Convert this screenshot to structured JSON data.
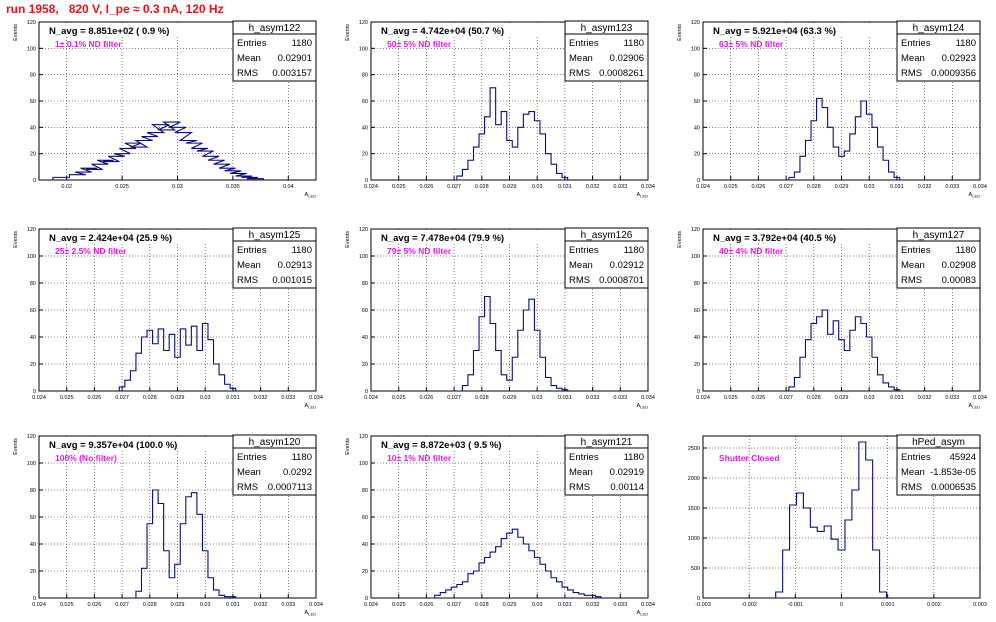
{
  "canvas_title": "run 1958,   820 V, I_pe ≈ 0.3 nA, 120 Hz",
  "colors": {
    "histogram": "#0c0c7a",
    "title": "#e8141b",
    "filter_label": "#e21be2",
    "grid": "#000000"
  },
  "chart_data": [
    {
      "type": "histogram",
      "name": "h_asym122",
      "header": "N_avg = 8.851e+02 ( 0.9 %)",
      "filter_label": "1± 0.1% ND filter",
      "stats": {
        "Entries": "1180",
        "Mean": "0.02901",
        "RMS": "0.003157"
      },
      "ylabel": "Events",
      "xlabel": "A_LED",
      "xlim": [
        0.0175,
        0.0425
      ],
      "ylim": [
        0,
        120
      ],
      "xticks": [
        0.02,
        0.025,
        0.03,
        0.035,
        0.04
      ],
      "xticklabels": [
        "0.02",
        "0.025",
        "0.03",
        "0.035",
        "0.04"
      ],
      "yticks": [
        0,
        20,
        40,
        60,
        80,
        100,
        120
      ],
      "grid": true,
      "bins": {
        "x": [
          0.0195,
          0.021,
          0.0215,
          0.022,
          0.0225,
          0.023,
          0.0235,
          0.024,
          0.0245,
          0.025,
          0.0255,
          0.026,
          0.0265,
          0.027,
          0.0275,
          0.028,
          0.0285,
          0.029,
          0.0295,
          0.03,
          0.0305,
          0.031,
          0.0315,
          0.032,
          0.0325,
          0.033,
          0.0335,
          0.034,
          0.0345,
          0.035,
          0.0355,
          0.036,
          0.0365,
          0.037
        ],
        "y": [
          2,
          4,
          6,
          9,
          8,
          12,
          15,
          14,
          18,
          20,
          24,
          28,
          25,
          30,
          33,
          36,
          42,
          38,
          44,
          40,
          36,
          30,
          28,
          24,
          22,
          18,
          15,
          12,
          9,
          7,
          5,
          3,
          2,
          1
        ]
      }
    },
    {
      "type": "histogram",
      "name": "h_asym123",
      "header": "N_avg = 4.742e+04 (50.7 %)",
      "filter_label": "50± 5% ND filter",
      "stats": {
        "Entries": "1180",
        "Mean": "0.02906",
        "RMS": "0.0008261"
      },
      "ylabel": "Events",
      "xlabel": "A_LED",
      "xlim": [
        0.024,
        0.034
      ],
      "ylim": [
        0,
        120
      ],
      "xticks": [
        0.024,
        0.025,
        0.026,
        0.027,
        0.028,
        0.029,
        0.03,
        0.031,
        0.032,
        0.033,
        0.034
      ],
      "xticklabels": [
        "0.024",
        "0.025",
        "0.026",
        "0.027",
        "0.028",
        "0.029",
        "0.03",
        "0.031",
        "0.032",
        "0.033",
        "0.034"
      ],
      "yticks": [
        0,
        20,
        40,
        60,
        80,
        100,
        120
      ],
      "grid": true,
      "bins": {
        "x": [
          0.0272,
          0.0274,
          0.0276,
          0.0278,
          0.028,
          0.0282,
          0.0284,
          0.0286,
          0.0288,
          0.029,
          0.0292,
          0.0294,
          0.0296,
          0.0298,
          0.03,
          0.0302,
          0.0304,
          0.0306,
          0.0308,
          0.031
        ],
        "y": [
          3,
          8,
          15,
          25,
          35,
          48,
          70,
          42,
          52,
          30,
          25,
          40,
          50,
          52,
          45,
          35,
          20,
          12,
          5,
          2
        ]
      }
    },
    {
      "type": "histogram",
      "name": "h_asym124",
      "header": "N_avg = 5.921e+04 (63.3 %)",
      "filter_label": "63± 5% ND filter",
      "stats": {
        "Entries": "1180",
        "Mean": "0.02923",
        "RMS": "0.0009356"
      },
      "ylabel": "Events",
      "xlabel": "A_LED",
      "xlim": [
        0.024,
        0.034
      ],
      "ylim": [
        0,
        120
      ],
      "xticks": [
        0.024,
        0.025,
        0.026,
        0.027,
        0.028,
        0.029,
        0.03,
        0.031,
        0.032,
        0.033,
        0.034
      ],
      "xticklabels": [
        "0.024",
        "0.025",
        "0.026",
        "0.027",
        "0.028",
        "0.029",
        "0.03",
        "0.031",
        "0.032",
        "0.033",
        "0.034"
      ],
      "yticks": [
        0,
        20,
        40,
        60,
        80,
        100,
        120
      ],
      "grid": true,
      "bins": {
        "x": [
          0.0272,
          0.0274,
          0.0276,
          0.0278,
          0.028,
          0.0282,
          0.0284,
          0.0286,
          0.0288,
          0.029,
          0.0292,
          0.0294,
          0.0296,
          0.0298,
          0.03,
          0.0302,
          0.0304,
          0.0306,
          0.0308,
          0.031
        ],
        "y": [
          2,
          6,
          18,
          30,
          45,
          62,
          55,
          40,
          25,
          18,
          22,
          35,
          48,
          60,
          50,
          40,
          25,
          15,
          6,
          2
        ]
      }
    },
    {
      "type": "histogram",
      "name": "h_asym125",
      "header": "N_avg = 2.424e+04 (25.9 %)",
      "filter_label": "25± 2.5% ND filter",
      "stats": {
        "Entries": "1180",
        "Mean": "0.02913",
        "RMS": "0.001015"
      },
      "ylabel": "Events",
      "xlabel": "A_LED",
      "xlim": [
        0.024,
        0.034
      ],
      "ylim": [
        0,
        120
      ],
      "xticks": [
        0.024,
        0.025,
        0.026,
        0.027,
        0.028,
        0.029,
        0.03,
        0.031,
        0.032,
        0.033,
        0.034
      ],
      "xticklabels": [
        "0.024",
        "0.025",
        "0.026",
        "0.027",
        "0.028",
        "0.029",
        "0.03",
        "0.031",
        "0.032",
        "0.033",
        "0.034"
      ],
      "yticks": [
        0,
        20,
        40,
        60,
        80,
        100,
        120
      ],
      "grid": true,
      "bins": {
        "x": [
          0.027,
          0.0272,
          0.0274,
          0.0276,
          0.0278,
          0.028,
          0.0282,
          0.0284,
          0.0286,
          0.0288,
          0.029,
          0.0292,
          0.0294,
          0.0296,
          0.0298,
          0.03,
          0.0302,
          0.0304,
          0.0306,
          0.0308,
          0.031
        ],
        "y": [
          3,
          8,
          15,
          28,
          40,
          45,
          35,
          46,
          30,
          42,
          25,
          46,
          34,
          48,
          30,
          50,
          38,
          20,
          12,
          5,
          2
        ]
      }
    },
    {
      "type": "histogram",
      "name": "h_asym126",
      "header": "N_avg = 7.478e+04 (79.9 %)",
      "filter_label": "79± 5% ND filter",
      "stats": {
        "Entries": "1180",
        "Mean": "0.02912",
        "RMS": "0.0008701"
      },
      "ylabel": "Events",
      "xlabel": "A_LED",
      "xlim": [
        0.024,
        0.034
      ],
      "ylim": [
        0,
        120
      ],
      "xticks": [
        0.024,
        0.025,
        0.026,
        0.027,
        0.028,
        0.029,
        0.03,
        0.031,
        0.032,
        0.033,
        0.034
      ],
      "xticklabels": [
        "0.024",
        "0.025",
        "0.026",
        "0.027",
        "0.028",
        "0.029",
        "0.03",
        "0.031",
        "0.032",
        "0.033",
        "0.034"
      ],
      "yticks": [
        0,
        20,
        40,
        60,
        80,
        100,
        120
      ],
      "grid": true,
      "bins": {
        "x": [
          0.0274,
          0.0276,
          0.0278,
          0.028,
          0.0282,
          0.0284,
          0.0286,
          0.0288,
          0.029,
          0.0292,
          0.0294,
          0.0296,
          0.0298,
          0.03,
          0.0302,
          0.0304,
          0.0306,
          0.0308,
          0.031
        ],
        "y": [
          4,
          12,
          30,
          55,
          70,
          50,
          30,
          12,
          8,
          25,
          45,
          60,
          68,
          45,
          25,
          10,
          4,
          2,
          1
        ]
      }
    },
    {
      "type": "histogram",
      "name": "h_asym127",
      "header": "N_avg = 3.792e+04 (40.5 %)",
      "filter_label": "40± 4% ND filter",
      "stats": {
        "Entries": "1180",
        "Mean": "0.02908",
        "RMS": "0.00083"
      },
      "ylabel": "Events",
      "xlabel": "A_LED",
      "xlim": [
        0.024,
        0.034
      ],
      "ylim": [
        0,
        120
      ],
      "xticks": [
        0.024,
        0.025,
        0.026,
        0.027,
        0.028,
        0.029,
        0.03,
        0.031,
        0.032,
        0.033,
        0.034
      ],
      "xticklabels": [
        "0.024",
        "0.025",
        "0.026",
        "0.027",
        "0.028",
        "0.029",
        "0.03",
        "0.031",
        "0.032",
        "0.033",
        "0.034"
      ],
      "yticks": [
        0,
        20,
        40,
        60,
        80,
        100,
        120
      ],
      "grid": true,
      "bins": {
        "x": [
          0.0272,
          0.0274,
          0.0276,
          0.0278,
          0.028,
          0.0282,
          0.0284,
          0.0286,
          0.0288,
          0.029,
          0.0292,
          0.0294,
          0.0296,
          0.0298,
          0.03,
          0.0302,
          0.0304,
          0.0306,
          0.0308,
          0.031
        ],
        "y": [
          3,
          10,
          25,
          38,
          50,
          55,
          60,
          42,
          52,
          38,
          30,
          45,
          55,
          50,
          40,
          25,
          12,
          6,
          3,
          1
        ]
      }
    },
    {
      "type": "histogram",
      "name": "h_asym120",
      "header": "N_avg = 9.357e+04 (100.0 %)",
      "filter_label": "100% (No filter)",
      "stats": {
        "Entries": "1180",
        "Mean": "0.0292",
        "RMS": "0.0007113"
      },
      "ylabel": "Events",
      "xlabel": "A_LED",
      "xlim": [
        0.024,
        0.034
      ],
      "ylim": [
        0,
        120
      ],
      "xticks": [
        0.024,
        0.025,
        0.026,
        0.027,
        0.028,
        0.029,
        0.03,
        0.031,
        0.032,
        0.033,
        0.034
      ],
      "xticklabels": [
        "0.024",
        "0.025",
        "0.026",
        "0.027",
        "0.028",
        "0.029",
        "0.03",
        "0.031",
        "0.032",
        "0.033",
        "0.034"
      ],
      "yticks": [
        0,
        20,
        40,
        60,
        80,
        100,
        120
      ],
      "grid": true,
      "bins": {
        "x": [
          0.0276,
          0.0278,
          0.028,
          0.0282,
          0.0284,
          0.0286,
          0.0288,
          0.029,
          0.0292,
          0.0294,
          0.0296,
          0.0298,
          0.03,
          0.0302,
          0.0304,
          0.0306,
          0.0308,
          0.031
        ],
        "y": [
          5,
          22,
          55,
          80,
          70,
          35,
          15,
          25,
          55,
          75,
          78,
          62,
          35,
          15,
          6,
          2,
          1,
          1
        ]
      }
    },
    {
      "type": "histogram",
      "name": "h_asym121",
      "header": "N_avg = 8.872e+03 ( 9.5 %)",
      "filter_label": "10± 1% ND filter",
      "stats": {
        "Entries": "1180",
        "Mean": "0.02919",
        "RMS": "0.00114"
      },
      "ylabel": "Events",
      "xlabel": "A_LED",
      "xlim": [
        0.024,
        0.034
      ],
      "ylim": [
        0,
        120
      ],
      "xticks": [
        0.024,
        0.025,
        0.026,
        0.027,
        0.028,
        0.029,
        0.03,
        0.031,
        0.032,
        0.033,
        0.034
      ],
      "xticklabels": [
        "0.024",
        "0.025",
        "0.026",
        "0.027",
        "0.028",
        "0.029",
        "0.03",
        "0.031",
        "0.032",
        "0.033",
        "0.034"
      ],
      "yticks": [
        0,
        20,
        40,
        60,
        80,
        100,
        120
      ],
      "grid": true,
      "bins": {
        "x": [
          0.0264,
          0.0266,
          0.0268,
          0.027,
          0.0272,
          0.0274,
          0.0276,
          0.0278,
          0.028,
          0.0282,
          0.0284,
          0.0286,
          0.0288,
          0.029,
          0.0292,
          0.0294,
          0.0296,
          0.0298,
          0.03,
          0.0302,
          0.0304,
          0.0306,
          0.0308,
          0.031,
          0.0312,
          0.0314,
          0.0316,
          0.0318,
          0.032,
          0.0322
        ],
        "y": [
          2,
          4,
          6,
          8,
          10,
          12,
          18,
          20,
          26,
          30,
          34,
          38,
          44,
          48,
          51,
          45,
          40,
          35,
          30,
          25,
          20,
          15,
          12,
          8,
          6,
          4,
          3,
          2,
          2,
          1
        ]
      }
    },
    {
      "type": "histogram",
      "name": "hPed_asym",
      "header": "",
      "filter_label": "Shutter Closed",
      "stats": {
        "Entries": "45924",
        "Mean": "-1.853e-05",
        "RMS": "0.0006535"
      },
      "ylabel": "",
      "xlabel": "",
      "xlim": [
        -0.003,
        0.003
      ],
      "ylim": [
        0,
        2700
      ],
      "xticks": [
        -0.003,
        -0.002,
        -0.001,
        0,
        0.001,
        0.002,
        0.003
      ],
      "xticklabels": [
        "-0.003",
        "-0.002",
        "-0.001",
        "0",
        "0.001",
        "0.002",
        "0.003"
      ],
      "yticks": [
        0,
        500,
        1000,
        1500,
        2000,
        2500
      ],
      "grid": true,
      "bins": {
        "x": [
          -0.00135,
          -0.0012,
          -0.00105,
          -0.0009,
          -0.00075,
          -0.0006,
          -0.00045,
          -0.0003,
          -0.00015,
          0,
          0.00015,
          0.0003,
          0.00045,
          0.0006,
          0.00075,
          0.0009
        ],
        "y": [
          100,
          800,
          1550,
          1750,
          1500,
          1180,
          1110,
          1200,
          980,
          800,
          1300,
          1800,
          2600,
          2300,
          800,
          100
        ]
      }
    }
  ]
}
